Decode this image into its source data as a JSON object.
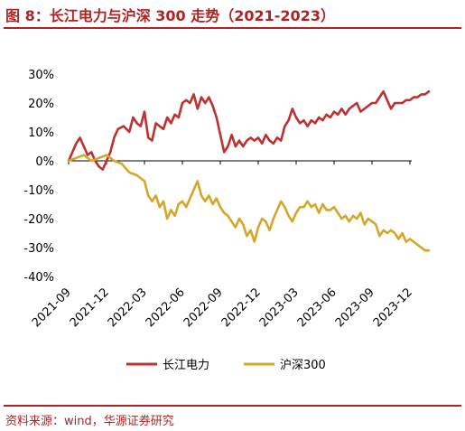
{
  "title": "图 8：长江电力与沪深 300 走势（2021-2023）",
  "source": "资料来源：wind，华源证券研究",
  "chart_data": {
    "type": "line",
    "ylim": [
      -40,
      30
    ],
    "y_ticks": [
      "30%",
      "20%",
      "10%",
      "0%",
      "-10%",
      "-20%",
      "-30%",
      "-40%"
    ],
    "x_ticks": [
      "2021-09",
      "2021-12",
      "2022-03",
      "2022-06",
      "2022-09",
      "2022-12",
      "2023-03",
      "2023-06",
      "2023-09",
      "2023-12"
    ],
    "colors": {
      "changjiang": "#C0302F",
      "hs300": "#D4A62A"
    },
    "series": [
      {
        "name": "长江电力",
        "color": "#C0302F",
        "x": [
          0,
          0.2,
          0.3,
          0.4,
          0.5,
          0.6,
          0.7,
          0.8,
          0.9,
          1.0,
          1.1,
          1.2,
          1.3,
          1.45,
          1.6,
          1.7,
          1.8,
          1.9,
          2.0,
          2.1,
          2.2,
          2.3,
          2.4,
          2.5,
          2.6,
          2.7,
          2.8,
          2.9,
          3.0,
          3.1,
          3.2,
          3.3,
          3.4,
          3.5,
          3.6,
          3.7,
          3.8,
          3.9,
          4.0,
          4.1,
          4.2,
          4.3,
          4.4,
          4.5,
          4.6,
          4.7,
          4.8,
          4.9,
          5.0,
          5.1,
          5.2,
          5.3,
          5.4,
          5.5,
          5.6,
          5.7,
          5.8,
          5.9,
          6.0,
          6.1,
          6.2,
          6.3,
          6.4,
          6.5,
          6.6,
          6.7,
          6.8,
          6.9,
          7.0,
          7.1,
          7.2,
          7.3,
          7.4,
          7.5,
          7.6,
          7.7,
          7.8,
          7.9,
          8.0,
          8.1,
          8.2,
          8.3,
          8.4,
          8.5,
          8.6,
          8.7,
          8.8,
          8.9,
          9.0,
          9.1,
          9.2,
          9.3,
          9.4,
          9.5
        ],
        "values": [
          0,
          6,
          8,
          5,
          2,
          3,
          0,
          -2,
          -3,
          0,
          3,
          8,
          11,
          12,
          10,
          15,
          13,
          12,
          17,
          8,
          7,
          13,
          12,
          11,
          15,
          13,
          16,
          15,
          20,
          21,
          20,
          23,
          18,
          22,
          20,
          22,
          19,
          15,
          9,
          3,
          5,
          9,
          5,
          7,
          5,
          7,
          8,
          7,
          8,
          6,
          9,
          7,
          6,
          8,
          7,
          12,
          14,
          18,
          15,
          13,
          14,
          12,
          14,
          13,
          15,
          14,
          16,
          15,
          17,
          16,
          18,
          16,
          18,
          19,
          20,
          17,
          18,
          19,
          20,
          20,
          22,
          24,
          21,
          18,
          20,
          20,
          20,
          21,
          21,
          22,
          22,
          23,
          23,
          24
        ]
      },
      {
        "name": "沪深300",
        "color": "#D4A62A",
        "x": [
          0,
          0.2,
          0.4,
          0.6,
          0.8,
          1.0,
          1.2,
          1.4,
          1.6,
          1.8,
          2.0,
          2.1,
          2.2,
          2.3,
          2.4,
          2.5,
          2.6,
          2.7,
          2.8,
          2.9,
          3.0,
          3.1,
          3.2,
          3.3,
          3.4,
          3.5,
          3.6,
          3.7,
          3.8,
          3.9,
          4.0,
          4.1,
          4.2,
          4.3,
          4.4,
          4.5,
          4.6,
          4.7,
          4.8,
          4.9,
          5.0,
          5.1,
          5.2,
          5.3,
          5.4,
          5.5,
          5.6,
          5.7,
          5.8,
          5.9,
          6.0,
          6.1,
          6.2,
          6.3,
          6.4,
          6.5,
          6.6,
          6.7,
          6.8,
          6.9,
          7.0,
          7.1,
          7.2,
          7.3,
          7.4,
          7.5,
          7.6,
          7.7,
          7.8,
          7.9,
          8.0,
          8.1,
          8.2,
          8.3,
          8.4,
          8.5,
          8.6,
          8.7,
          8.8,
          8.9,
          9.0,
          9.1,
          9.2,
          9.3,
          9.4,
          9.5
        ],
        "values": [
          0,
          1,
          2,
          0,
          1,
          2,
          0,
          -1,
          -4,
          -5,
          -7,
          -12,
          -14,
          -12,
          -16,
          -14,
          -20,
          -17,
          -19,
          -15,
          -14,
          -16,
          -13,
          -10,
          -7,
          -12,
          -14,
          -12,
          -15,
          -13,
          -16,
          -18,
          -19,
          -21,
          -23,
          -20,
          -22,
          -26,
          -24,
          -28,
          -23,
          -20,
          -21,
          -24,
          -20,
          -17,
          -14,
          -16,
          -19,
          -21,
          -18,
          -16,
          -16,
          -14,
          -16,
          -15,
          -18,
          -15,
          -17,
          -17,
          -16,
          -18,
          -20,
          -19,
          -21,
          -19,
          -20,
          -18,
          -22,
          -20,
          -21,
          -22,
          -26,
          -24,
          -25,
          -24,
          -25,
          -27,
          -25,
          -28,
          -27,
          -28,
          -29,
          -30,
          -31,
          -31
        ]
      }
    ],
    "legend_position": "bottom"
  },
  "legend": [
    {
      "label": "长江电力",
      "color": "#C0302F"
    },
    {
      "label": "沪深300",
      "color": "#D4A62A"
    }
  ]
}
